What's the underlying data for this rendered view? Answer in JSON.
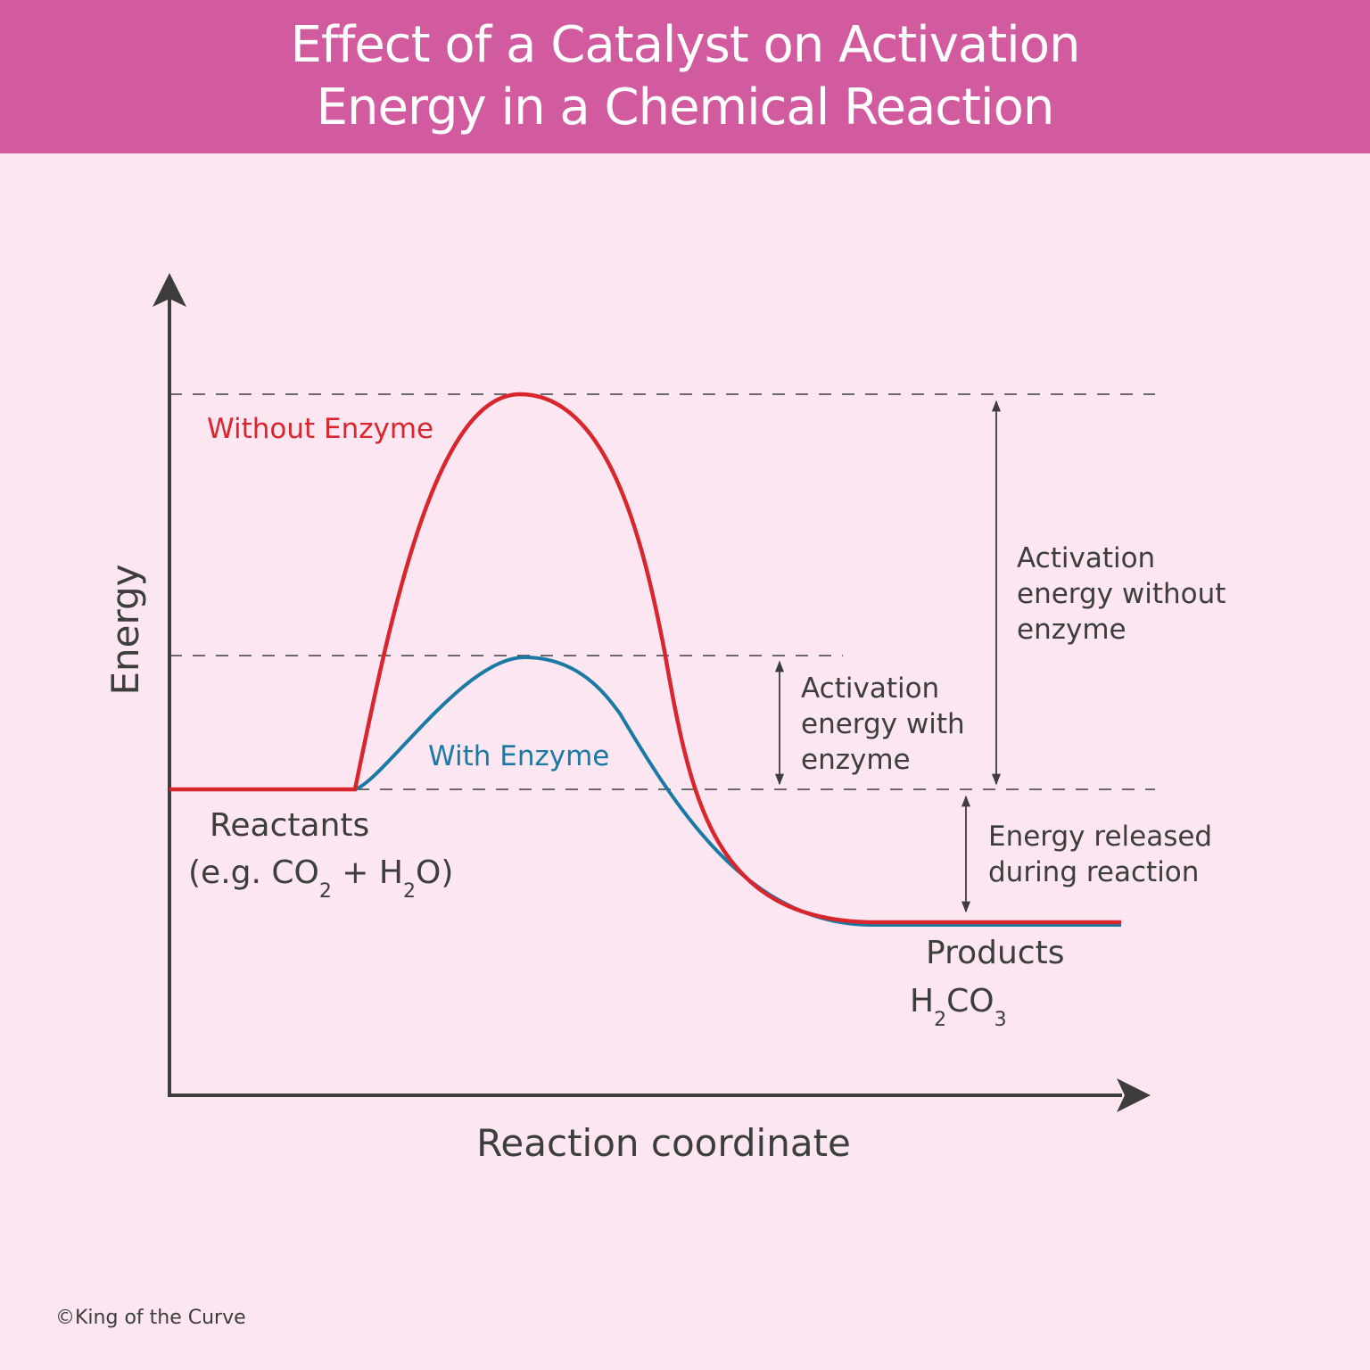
{
  "header": {
    "title_line1": "Effect of a Catalyst on Activation",
    "title_line2": "Energy in a Chemical Reaction"
  },
  "axes": {
    "y_label": "Energy",
    "x_label": "Reaction coordinate"
  },
  "curves": {
    "without_enzyme": {
      "label": "Without Enzyme",
      "color": "#d9252c"
    },
    "with_enzyme": {
      "label": "With Enzyme",
      "color": "#1a7aa3"
    }
  },
  "reactants": {
    "label": "Reactants",
    "example_prefix": "(e.g. CO",
    "sub1": "2",
    "mid": " + H",
    "sub2": "2",
    "suffix": "O)"
  },
  "products": {
    "label": "Products",
    "formula_h": "H",
    "sub1": "2",
    "formula_co": "CO",
    "sub2": "3"
  },
  "annotations": {
    "activation_with": [
      "Activation",
      "energy with",
      "enzyme"
    ],
    "activation_without": [
      "Activation",
      "energy without",
      "enzyme"
    ],
    "energy_released": [
      "Energy released",
      "during reaction"
    ]
  },
  "colors": {
    "background": "#fbe6f1",
    "header": "#d25a9e",
    "axis": "#3d3d3d",
    "text": "#3d3d3d"
  },
  "footer": {
    "copyright": "©King of the Curve"
  }
}
